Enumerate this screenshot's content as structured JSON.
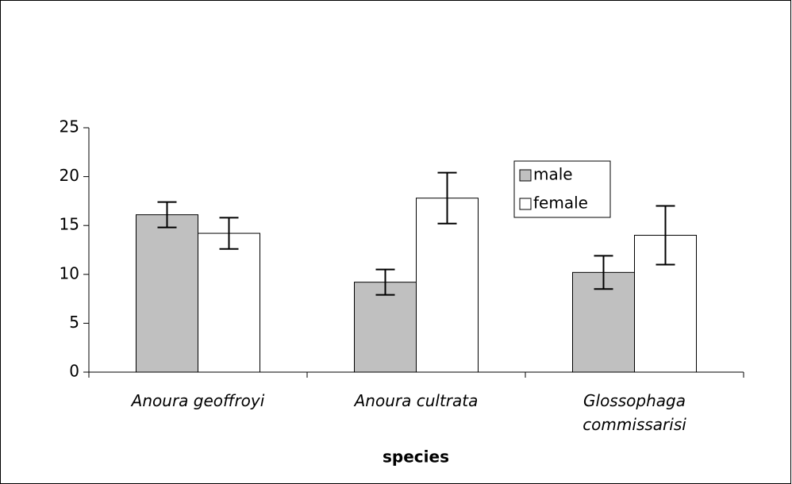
{
  "chart_data": {
    "type": "bar",
    "categories": [
      "Anoura geoffroyi",
      "Anoura cultrata",
      "Glossophaga commissarisi"
    ],
    "series": [
      {
        "name": "male",
        "color": "#c0c0c0",
        "values": [
          16.1,
          9.2,
          10.2
        ],
        "errors": [
          1.3,
          1.3,
          1.7
        ]
      },
      {
        "name": "female",
        "color": "#ffffff",
        "values": [
          14.2,
          17.8,
          14.0
        ],
        "errors": [
          1.6,
          2.6,
          3.0
        ]
      }
    ],
    "x_label": "species",
    "ylim": [
      0,
      25
    ],
    "yticks": [
      0,
      5,
      10,
      15,
      20,
      25
    ],
    "grid": false,
    "legend": "upper right"
  }
}
